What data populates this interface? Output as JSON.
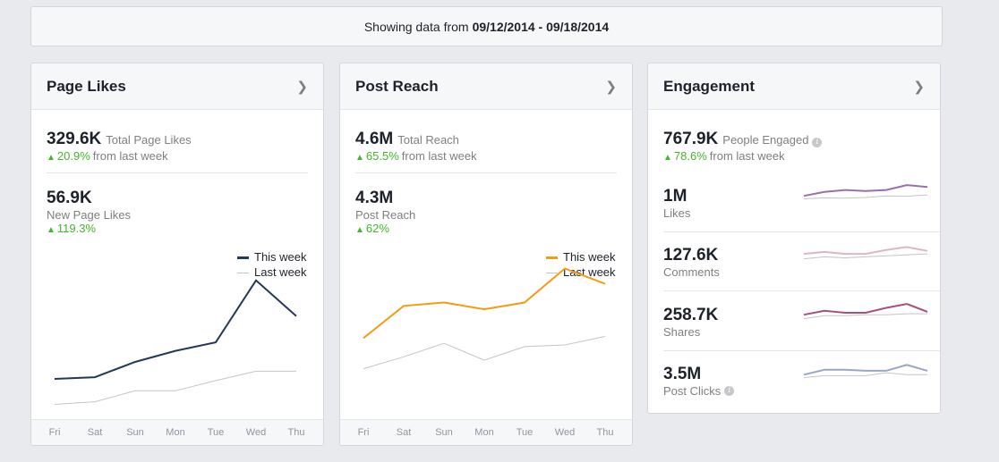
{
  "banner": {
    "prefix": "Showing data from",
    "range": "09/12/2014 - 09/18/2014"
  },
  "colors": {
    "likes_this_week": "#23385a",
    "reach_this_week": "#f39c12",
    "last_week": "#c3c4c6",
    "positive": "#42b72a"
  },
  "icons": {
    "chevron": "chevron-right-icon",
    "info": "info-icon",
    "up": "triangle-up-icon"
  },
  "likes": {
    "title": "Page Likes",
    "total_value": "329.6K",
    "total_label": "Total Page Likes",
    "total_delta": "20.9%",
    "total_delta_suffix": "from last week",
    "new_value": "56.9K",
    "new_label": "New Page Likes",
    "new_delta": "119.3%",
    "legend_this": "This week",
    "legend_last": "Last week"
  },
  "reach": {
    "title": "Post Reach",
    "total_value": "4.6M",
    "total_label": "Total Reach",
    "total_delta": "65.5%",
    "total_delta_suffix": "from last week",
    "post_value": "4.3M",
    "post_label": "Post Reach",
    "post_delta": "62%",
    "legend_this": "This week",
    "legend_last": "Last week"
  },
  "engagement": {
    "title": "Engagement",
    "total_value": "767.9K",
    "total_label": "People Engaged",
    "total_delta": "78.6%",
    "total_delta_suffix": "from last week",
    "rows": [
      {
        "value": "1M",
        "label": "Likes",
        "color": "#9b6fae"
      },
      {
        "value": "127.6K",
        "label": "Comments",
        "color": "#e2b3c8"
      },
      {
        "value": "258.7K",
        "label": "Shares",
        "color": "#a84f7c"
      },
      {
        "value": "3.5M",
        "label": "Post Clicks",
        "color": "#96a6cc"
      }
    ]
  },
  "chart_data": [
    {
      "type": "line",
      "categories": [
        "Fri",
        "Sat",
        "Sun",
        "Mon",
        "Tue",
        "Wed",
        "Thu"
      ],
      "series": [
        {
          "name": "This week",
          "values": [
            6.0,
            6.2,
            8.0,
            9.3,
            10.3,
            17.6,
            13.4
          ]
        },
        {
          "name": "Last week",
          "values": [
            3.0,
            3.3,
            4.6,
            4.6,
            5.8,
            6.9,
            6.9
          ]
        }
      ],
      "ylim": [
        0,
        20
      ]
    },
    {
      "type": "line",
      "categories": [
        "Fri",
        "Sat",
        "Sun",
        "Mon",
        "Tue",
        "Wed",
        "Thu"
      ],
      "series": [
        {
          "name": "This week",
          "values": [
            0.54,
            0.73,
            0.75,
            0.71,
            0.75,
            0.95,
            0.86
          ]
        },
        {
          "name": "Last week",
          "values": [
            0.36,
            0.43,
            0.51,
            0.41,
            0.49,
            0.5,
            0.55
          ]
        }
      ],
      "ylim": [
        0,
        1
      ]
    },
    {
      "type": "line",
      "categories": [
        "Fri",
        "Sat",
        "Sun",
        "Mon",
        "Tue",
        "Wed",
        "Thu"
      ],
      "series": [
        {
          "values": [
            0.4,
            0.6,
            0.7,
            0.65,
            0.7,
            0.95,
            0.85
          ]
        },
        {
          "values": [
            0.25,
            0.3,
            0.28,
            0.32,
            0.4,
            0.38,
            0.45
          ]
        }
      ]
    },
    {
      "type": "line",
      "categories": [
        "Fri",
        "Sat",
        "Sun",
        "Mon",
        "Tue",
        "Wed",
        "Thu"
      ],
      "series": [
        {
          "values": [
            0.45,
            0.55,
            0.45,
            0.45,
            0.65,
            0.8,
            0.6
          ]
        },
        {
          "values": [
            0.2,
            0.3,
            0.25,
            0.3,
            0.35,
            0.4,
            0.45
          ]
        }
      ]
    },
    {
      "type": "line",
      "categories": [
        "Fri",
        "Sat",
        "Sun",
        "Mon",
        "Tue",
        "Wed",
        "Thu"
      ],
      "series": [
        {
          "values": [
            0.4,
            0.6,
            0.5,
            0.5,
            0.75,
            0.95,
            0.55
          ]
        },
        {
          "values": [
            0.2,
            0.35,
            0.35,
            0.4,
            0.4,
            0.45,
            0.45
          ]
        }
      ]
    },
    {
      "type": "line",
      "categories": [
        "Fri",
        "Sat",
        "Sun",
        "Mon",
        "Tue",
        "Wed",
        "Thu"
      ],
      "series": [
        {
          "values": [
            0.35,
            0.6,
            0.6,
            0.55,
            0.55,
            0.85,
            0.55
          ]
        },
        {
          "values": [
            0.2,
            0.3,
            0.3,
            0.3,
            0.45,
            0.35,
            0.35
          ]
        }
      ]
    }
  ]
}
